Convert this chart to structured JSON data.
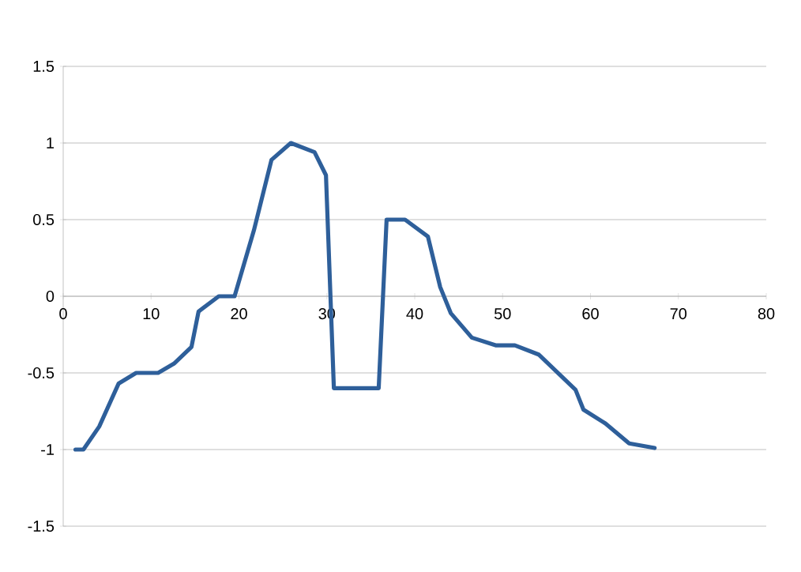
{
  "chart_data": {
    "type": "line",
    "series": [
      {
        "color": "#2e5f9a",
        "x": [
          1.4,
          2.3,
          4.1,
          6.3,
          8.3,
          10.8,
          12.6,
          14.6,
          15.4,
          17.7,
          19.5,
          21.7,
          23.7,
          25.9,
          28.6,
          29.9,
          30.8,
          35.9,
          36.8,
          38.9,
          41.5,
          42.9,
          44.1,
          46.5,
          49.2,
          51.4,
          54.1,
          58.3,
          59.2,
          61.7,
          64.4,
          67.3
        ],
        "values": [
          -1,
          -1,
          -0.85,
          -0.57,
          -0.5,
          -0.5,
          -0.44,
          -0.33,
          -0.1,
          0,
          0,
          0.43,
          0.89,
          1,
          0.94,
          0.79,
          -0.6,
          -0.6,
          0.5,
          0.5,
          0.39,
          0.06,
          -0.11,
          -0.27,
          -0.32,
          -0.32,
          -0.38,
          -0.61,
          -0.74,
          -0.83,
          -0.96,
          -0.99
        ]
      }
    ],
    "xlim": [
      0,
      80
    ],
    "xticks": [
      0,
      10,
      20,
      30,
      40,
      50,
      60,
      70,
      80
    ],
    "ylim": [
      -1.5,
      1.5
    ],
    "yticks": [
      -1.5,
      -1,
      -0.5,
      0,
      0.5,
      1,
      1.5
    ],
    "grid": "y",
    "marker": "none",
    "line_style": "solid"
  }
}
